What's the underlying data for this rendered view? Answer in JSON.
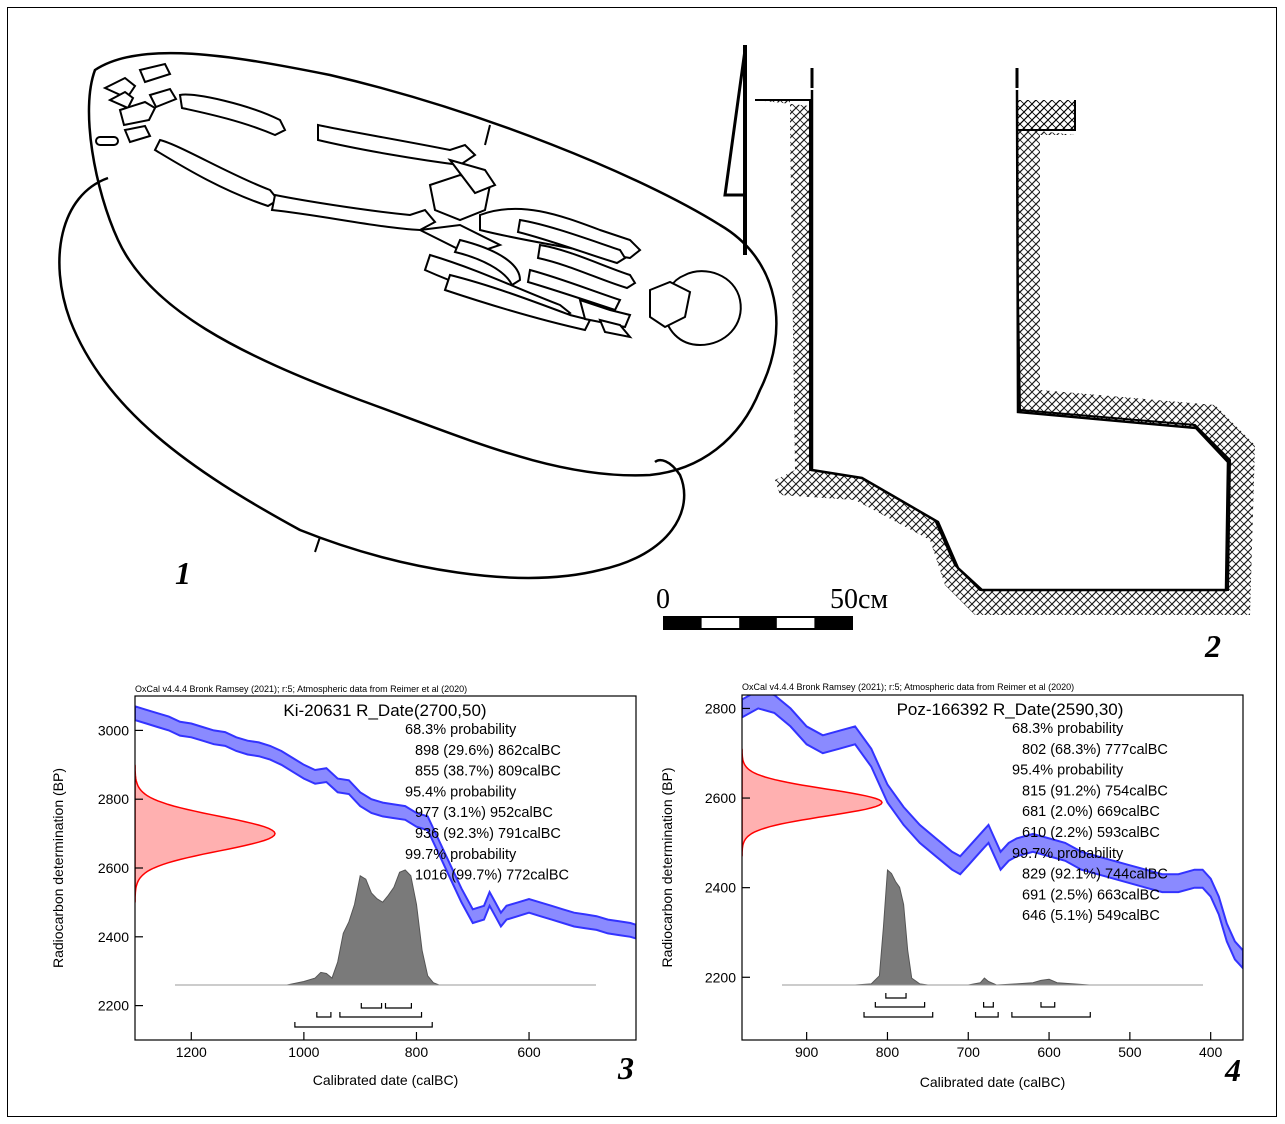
{
  "figure": {
    "panel_labels": [
      "1",
      "2",
      "3",
      "4"
    ],
    "scale_bar": {
      "start_label": "0",
      "end_label": "50см"
    }
  },
  "colors": {
    "calibration_curve": "#3333ff",
    "calibration_fill": "#8a8aff",
    "radiocarbon_fill": "#ffb0b0",
    "radiocarbon_line": "#ff0000",
    "posterior_fill": "#7a7a7a",
    "hatch": "#000000"
  },
  "chart_data": [
    {
      "type": "area",
      "header": "OxCal v4.4.4 Bronk Ramsey (2021); r:5; Atmospheric data from Reimer et al (2020)",
      "title": "Ki-20631 R_Date(2700,50)",
      "xlabel": "Calibrated date (calBC)",
      "ylabel": "Radiocarbon determination (BP)",
      "x_reversed": true,
      "xlim": [
        1300,
        410
      ],
      "ylim": [
        2100,
        3100
      ],
      "xticks": [
        1200,
        1000,
        800,
        600
      ],
      "yticks": [
        2200,
        2400,
        2600,
        2800,
        3000
      ],
      "grid": false,
      "ranges_text": [
        "68.3% probability",
        "898 (29.6%) 862calBC",
        "855 (38.7%) 809calBC",
        "95.4% probability",
        "977 (3.1%) 952calBC",
        "936 (92.3%) 791calBC",
        "99.7% probability",
        "1016 (99.7%) 772calBC"
      ],
      "ranges_1sigma": [
        [
          898,
          862
        ],
        [
          855,
          809
        ]
      ],
      "ranges_2sigma": [
        [
          977,
          952
        ],
        [
          936,
          791
        ]
      ],
      "ranges_3sigma": [
        [
          1016,
          772
        ]
      ],
      "radiocarbon": {
        "mean": 2700,
        "sd": 50
      },
      "calibration_curve": {
        "x": [
          1300,
          1280,
          1260,
          1240,
          1220,
          1200,
          1180,
          1160,
          1140,
          1120,
          1100,
          1080,
          1060,
          1040,
          1020,
          1000,
          980,
          960,
          940,
          920,
          900,
          880,
          860,
          840,
          820,
          800,
          780,
          760,
          740,
          720,
          700,
          680,
          670,
          660,
          650,
          640,
          620,
          600,
          580,
          560,
          540,
          520,
          500,
          480,
          460,
          440,
          420,
          410
        ],
        "y": [
          3050,
          3040,
          3030,
          3020,
          3005,
          3000,
          2990,
          2980,
          2975,
          2960,
          2950,
          2945,
          2935,
          2920,
          2900,
          2880,
          2865,
          2870,
          2840,
          2835,
          2800,
          2780,
          2770,
          2765,
          2760,
          2740,
          2730,
          2660,
          2590,
          2520,
          2460,
          2470,
          2510,
          2480,
          2450,
          2470,
          2480,
          2490,
          2480,
          2470,
          2460,
          2450,
          2445,
          2440,
          2430,
          2425,
          2420,
          2415
        ],
        "band": 20
      },
      "posterior": {
        "x": [
          1030,
          1000,
          980,
          970,
          960,
          950,
          940,
          930,
          920,
          910,
          900,
          890,
          880,
          870,
          860,
          850,
          840,
          830,
          820,
          810,
          800,
          790,
          780,
          770,
          760
        ],
        "density": [
          0.0,
          0.03,
          0.06,
          0.11,
          0.1,
          0.06,
          0.2,
          0.45,
          0.55,
          0.7,
          0.95,
          0.92,
          0.8,
          0.75,
          0.72,
          0.78,
          0.85,
          0.98,
          1.0,
          0.95,
          0.7,
          0.3,
          0.08,
          0.02,
          0.0
        ]
      },
      "panel_label": "3"
    },
    {
      "type": "area",
      "header": "OxCal v4.4.4 Bronk Ramsey (2021); r:5; Atmospheric data from Reimer et al (2020)",
      "title": "Poz-166392 R_Date(2590,30)",
      "xlabel": "Calibrated date (calBC)",
      "ylabel": "Radiocarbon determination (BP)",
      "x_reversed": true,
      "xlim": [
        980,
        360
      ],
      "ylim": [
        2060,
        2830
      ],
      "xticks": [
        900,
        800,
        700,
        600,
        500,
        400
      ],
      "yticks": [
        2200,
        2400,
        2600,
        2800
      ],
      "grid": false,
      "ranges_text": [
        "68.3% probability",
        "802 (68.3%) 777calBC",
        "95.4% probability",
        "815 (91.2%) 754calBC",
        "681 (2.0%) 669calBC",
        "610 (2.2%) 593calBC",
        "99.7% probability",
        "829 (92.1%) 744calBC",
        "691 (2.5%) 663calBC",
        "646 (5.1%) 549calBC"
      ],
      "ranges_1sigma": [
        [
          802,
          777
        ]
      ],
      "ranges_2sigma": [
        [
          815,
          754
        ],
        [
          681,
          669
        ],
        [
          610,
          593
        ]
      ],
      "ranges_3sigma": [
        [
          829,
          744
        ],
        [
          691,
          663
        ],
        [
          646,
          549
        ]
      ],
      "radiocarbon": {
        "mean": 2590,
        "sd": 30
      },
      "calibration_curve": {
        "x": [
          980,
          960,
          940,
          920,
          900,
          880,
          860,
          840,
          820,
          800,
          780,
          760,
          740,
          720,
          710,
          700,
          690,
          680,
          675,
          670,
          660,
          650,
          640,
          620,
          600,
          580,
          560,
          540,
          520,
          500,
          480,
          460,
          440,
          420,
          410,
          400,
          390,
          380,
          370,
          360
        ],
        "y": [
          2800,
          2820,
          2810,
          2780,
          2740,
          2720,
          2730,
          2740,
          2690,
          2610,
          2560,
          2520,
          2490,
          2460,
          2450,
          2470,
          2490,
          2510,
          2520,
          2500,
          2460,
          2480,
          2490,
          2500,
          2490,
          2480,
          2460,
          2450,
          2440,
          2430,
          2420,
          2410,
          2410,
          2420,
          2420,
          2400,
          2360,
          2300,
          2260,
          2240
        ],
        "band": 20
      },
      "posterior": {
        "x": [
          840,
          820,
          810,
          805,
          800,
          795,
          790,
          785,
          780,
          775,
          770,
          760,
          750,
          700,
          685,
          680,
          675,
          665,
          640,
          620,
          610,
          600,
          590,
          570,
          550
        ],
        "density": [
          0.0,
          0.01,
          0.08,
          0.5,
          1.0,
          0.97,
          0.9,
          0.85,
          0.7,
          0.3,
          0.06,
          0.01,
          0.0,
          0.0,
          0.02,
          0.06,
          0.03,
          0.0,
          0.01,
          0.02,
          0.04,
          0.05,
          0.02,
          0.01,
          0.0
        ]
      },
      "panel_label": "4"
    }
  ]
}
